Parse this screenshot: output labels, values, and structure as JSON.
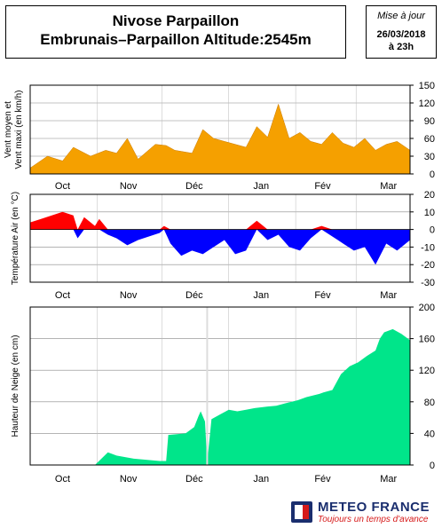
{
  "header": {
    "title_line1": "Nivose Parpaillon",
    "title_line2": "Embrunais–Parpaillon Altitude:2545m",
    "update_label": "Mise à jour",
    "update_date": "26/03/2018",
    "update_time": "à 23h"
  },
  "logo": {
    "name": "METEO FRANCE",
    "tagline": "Toujours un temps d'avance"
  },
  "colors": {
    "wind": "#f5a000",
    "temp_warm": "#ff0000",
    "temp_cold": "#0000ff",
    "snow": "#00e58a",
    "grid": "#000000"
  },
  "months": [
    "Oct",
    "Nov",
    "Déc",
    "Jan",
    "Fév",
    "Mar"
  ],
  "chart_data": [
    {
      "type": "area",
      "ylabel": "Vent moyen et Vent maxi (en km/h)",
      "ylim": [
        0,
        150
      ],
      "yticks": [
        0,
        30,
        60,
        90,
        120,
        150
      ],
      "x": [
        0,
        8,
        15,
        20,
        28,
        35,
        40,
        45,
        50,
        58,
        63,
        67,
        75,
        80,
        85,
        90,
        95,
        100,
        105,
        110,
        115,
        120,
        125,
        130,
        135,
        140,
        145,
        150,
        155,
        160,
        165,
        170,
        176
      ],
      "values": [
        10,
        30,
        22,
        45,
        30,
        40,
        35,
        60,
        25,
        50,
        48,
        40,
        35,
        75,
        60,
        55,
        50,
        45,
        80,
        62,
        118,
        60,
        70,
        55,
        50,
        70,
        52,
        45,
        60,
        40,
        50,
        55,
        40
      ],
      "grid": true
    },
    {
      "type": "area",
      "ylabel": "Température Air (en °C)",
      "ylim": [
        -30,
        20
      ],
      "yticks": [
        -30,
        -20,
        -10,
        0,
        10,
        20
      ],
      "x": [
        0,
        5,
        10,
        15,
        20,
        22,
        25,
        28,
        30,
        32,
        36,
        40,
        45,
        50,
        55,
        60,
        62,
        65,
        70,
        75,
        80,
        85,
        90,
        95,
        100,
        105,
        110,
        115,
        120,
        125,
        130,
        135,
        140,
        145,
        150,
        155,
        160,
        165,
        170,
        176
      ],
      "values": [
        4,
        6,
        8,
        10,
        8,
        -5,
        7,
        4,
        2,
        6,
        -3,
        -5,
        -9,
        -6,
        -4,
        -2,
        2,
        -8,
        -15,
        -12,
        -14,
        -10,
        -6,
        -14,
        -12,
        5,
        -6,
        -3,
        -10,
        -12,
        -5,
        2,
        -4,
        -8,
        -12,
        -10,
        -20,
        -8,
        -12,
        -6
      ],
      "grid": true
    },
    {
      "type": "area",
      "ylabel": "Hauteur de Neige (en cm)",
      "ylim": [
        0,
        200
      ],
      "yticks": [
        0,
        40,
        80,
        120,
        160,
        200
      ],
      "x": [
        0,
        30,
        33,
        36,
        40,
        48,
        52,
        56,
        60,
        63,
        64,
        72,
        76,
        78,
        79,
        81,
        82,
        84,
        88,
        92,
        96,
        100,
        104,
        110,
        114,
        118,
        124,
        128,
        134,
        136,
        140,
        144,
        148,
        152,
        156,
        160,
        162,
        164,
        168,
        172,
        176
      ],
      "values": [
        0,
        0,
        8,
        16,
        12,
        8,
        7,
        6,
        5,
        5,
        38,
        40,
        48,
        62,
        68,
        55,
        3,
        58,
        64,
        70,
        68,
        70,
        72,
        74,
        75,
        78,
        82,
        86,
        90,
        92,
        95,
        115,
        125,
        130,
        138,
        145,
        160,
        168,
        172,
        166,
        158
      ],
      "grid": true
    }
  ]
}
